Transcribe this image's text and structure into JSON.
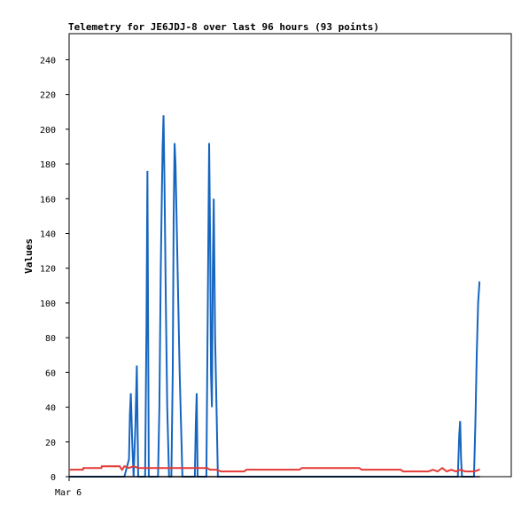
{
  "chart_data": {
    "type": "line",
    "title": "Telemetry for JE6JDJ-8 over last 96 hours (93 points)",
    "ylabel": "Values",
    "xlabel": "",
    "x_tick_labels": [
      "Mar 6"
    ],
    "ylim": [
      0,
      255
    ],
    "y_ticks": [
      0,
      20,
      40,
      60,
      80,
      100,
      120,
      140,
      160,
      180,
      200,
      220,
      240
    ],
    "grid": false,
    "legend": "none",
    "series": [
      {
        "color": "#1565c0",
        "points": [
          [
            0,
            0
          ],
          [
            12,
            0
          ],
          [
            13,
            10
          ],
          [
            13.2,
            36
          ],
          [
            13.4,
            48
          ],
          [
            13.7,
            20
          ],
          [
            14,
            0
          ],
          [
            14.4,
            30
          ],
          [
            14.7,
            64
          ],
          [
            15,
            0
          ],
          [
            16.5,
            0
          ],
          [
            16.8,
            88
          ],
          [
            17,
            176
          ],
          [
            17.3,
            0
          ],
          [
            19.3,
            0
          ],
          [
            19.6,
            40
          ],
          [
            19.9,
            120
          ],
          [
            20.1,
            156
          ],
          [
            20.3,
            190
          ],
          [
            20.5,
            208
          ],
          [
            20.7,
            170
          ],
          [
            21,
            100
          ],
          [
            21.3,
            40
          ],
          [
            21.7,
            0
          ],
          [
            22.2,
            0
          ],
          [
            22.5,
            60
          ],
          [
            22.7,
            150
          ],
          [
            22.9,
            192
          ],
          [
            23.1,
            180
          ],
          [
            23.4,
            140
          ],
          [
            23.7,
            100
          ],
          [
            24,
            60
          ],
          [
            24.3,
            30
          ],
          [
            24.6,
            0
          ],
          [
            27.3,
            0
          ],
          [
            27.5,
            30
          ],
          [
            27.7,
            48
          ],
          [
            27.9,
            0
          ],
          [
            29.8,
            0
          ],
          [
            30.1,
            96
          ],
          [
            30.4,
            192
          ],
          [
            30.6,
            140
          ],
          [
            30.8,
            60
          ],
          [
            31,
            40
          ],
          [
            31.2,
            120
          ],
          [
            31.4,
            160
          ],
          [
            31.7,
            80
          ],
          [
            32,
            40
          ],
          [
            32.3,
            0
          ],
          [
            84.4,
            0
          ],
          [
            84.7,
            24
          ],
          [
            84.9,
            32
          ],
          [
            85.1,
            10
          ],
          [
            85.3,
            0
          ],
          [
            87.9,
            0
          ],
          [
            88.2,
            30
          ],
          [
            88.5,
            70
          ],
          [
            88.8,
            100
          ],
          [
            89.1,
            112
          ],
          [
            89.2,
            112
          ]
        ]
      },
      {
        "color": "#e53935",
        "points": [
          [
            0,
            4
          ],
          [
            3,
            4
          ],
          [
            3.1,
            5
          ],
          [
            7,
            5
          ],
          [
            7.1,
            6
          ],
          [
            11,
            6
          ],
          [
            11.2,
            5
          ],
          [
            11.5,
            4
          ],
          [
            12,
            6
          ],
          [
            13,
            5
          ],
          [
            14,
            6
          ],
          [
            15,
            5
          ],
          [
            18,
            5
          ],
          [
            30,
            5
          ],
          [
            30.5,
            4
          ],
          [
            31.5,
            4
          ],
          [
            32,
            4
          ],
          [
            33,
            3
          ],
          [
            38,
            3
          ],
          [
            38.5,
            4
          ],
          [
            50,
            4
          ],
          [
            50.5,
            5
          ],
          [
            63,
            5
          ],
          [
            63.5,
            4
          ],
          [
            72,
            4
          ],
          [
            72.5,
            3
          ],
          [
            78,
            3
          ],
          [
            79,
            4
          ],
          [
            80,
            3
          ],
          [
            81,
            5
          ],
          [
            82,
            3
          ],
          [
            83,
            4
          ],
          [
            84,
            3
          ],
          [
            85,
            4
          ],
          [
            86,
            3
          ],
          [
            87,
            3
          ],
          [
            88,
            3
          ],
          [
            89,
            4
          ],
          [
            89.2,
            4
          ]
        ]
      },
      {
        "color": "#000000",
        "points": [
          [
            0,
            0
          ],
          [
            89.2,
            0
          ]
        ]
      }
    ]
  }
}
